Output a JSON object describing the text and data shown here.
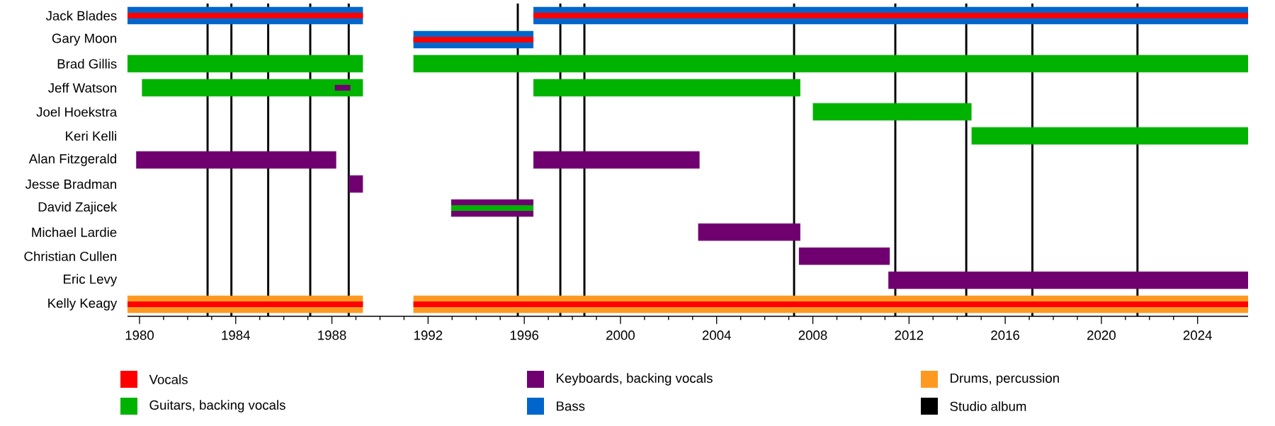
{
  "chart_data": {
    "type": "bar",
    "orientation": "horizontal",
    "legend": "bottom",
    "categories": [
      "Jack Blades",
      "Gary Moon",
      "Brad Gillis",
      "Jeff Watson",
      "Joel Hoekstra",
      "Keri Kelli",
      "Alan Fitzgerald",
      "Jesse Bradman",
      "David Zajicek",
      "Michael Lardie",
      "Christian Cullen",
      "Eric Levy",
      "Kelly Keagy"
    ],
    "xlim": [
      1979.5,
      2026.1
    ],
    "xticks": [
      1980,
      1984,
      1988,
      1992,
      1996,
      2000,
      2004,
      2008,
      2012,
      2016,
      2020,
      2024
    ],
    "series": [
      {
        "name": "Vocals",
        "color": "#ff0000",
        "base": [
          1979.5,
          1991.39,
          null,
          null,
          null,
          null,
          null,
          null,
          null,
          null,
          null,
          null,
          1979.5
        ],
        "values": [
          9.79,
          4.99,
          null,
          null,
          null,
          null,
          null,
          null,
          null,
          null,
          null,
          null,
          9.79
        ]
      },
      {
        "color": "#ff0000",
        "base": [
          1996.38,
          null,
          null,
          null,
          null,
          null,
          null,
          null,
          null,
          null,
          null,
          null,
          1991.39
        ],
        "values": [
          29.72,
          null,
          null,
          null,
          null,
          null,
          null,
          null,
          null,
          null,
          null,
          null,
          34.71
        ]
      },
      {
        "name": "Guitars, backing vocals",
        "color": "#00b300",
        "base": [
          null,
          null,
          1979.5,
          1980.1,
          2008.0,
          2014.6,
          null,
          null,
          1992.96,
          null,
          null,
          null,
          null
        ],
        "values": [
          null,
          null,
          9.79,
          9.19,
          6.6,
          11.5,
          null,
          null,
          3.42,
          null,
          null,
          null,
          null
        ]
      },
      {
        "color": "#00b300",
        "base": [
          null,
          null,
          1991.39,
          1996.38,
          null,
          null,
          null,
          null,
          null,
          null,
          null,
          null,
          null
        ],
        "values": [
          null,
          null,
          34.71,
          11.1,
          null,
          null,
          null,
          null,
          null,
          null,
          null,
          null,
          null
        ]
      },
      {
        "name": "Keyboards, backing vocals",
        "color": "#700070",
        "base": [
          null,
          null,
          null,
          1988.12,
          null,
          null,
          1979.86,
          1988.7,
          1992.96,
          2003.23,
          2007.42,
          2011.14,
          null
        ],
        "values": [
          null,
          null,
          null,
          0.65,
          null,
          null,
          8.32,
          0.59,
          3.42,
          4.25,
          3.78,
          14.96,
          null
        ]
      },
      {
        "color": "#700070",
        "base": [
          null,
          null,
          null,
          null,
          null,
          null,
          1996.38,
          null,
          null,
          null,
          null,
          null,
          null
        ],
        "values": [
          null,
          null,
          null,
          null,
          null,
          null,
          6.91,
          null,
          null,
          null,
          null,
          null,
          null
        ]
      },
      {
        "name": "Bass",
        "color": "#0066cc",
        "base": [
          1979.5,
          1991.39,
          null,
          null,
          null,
          null,
          null,
          null,
          null,
          null,
          null,
          null,
          null
        ],
        "values": [
          9.79,
          4.99,
          null,
          null,
          null,
          null,
          null,
          null,
          null,
          null,
          null,
          null,
          null
        ]
      },
      {
        "color": "#0066cc",
        "base": [
          1996.38,
          null,
          null,
          null,
          null,
          null,
          null,
          null,
          null,
          null,
          null,
          null,
          null
        ],
        "values": [
          29.72,
          null,
          null,
          null,
          null,
          null,
          null,
          null,
          null,
          null,
          null,
          null,
          null
        ]
      },
      {
        "name": "Drums, percussion",
        "color": "#ff9922",
        "base": [
          null,
          null,
          null,
          null,
          null,
          null,
          null,
          null,
          null,
          null,
          null,
          null,
          1979.5
        ],
        "values": [
          null,
          null,
          null,
          null,
          null,
          null,
          null,
          null,
          null,
          null,
          null,
          null,
          9.79
        ]
      },
      {
        "color": "#ff9922",
        "base": [
          null,
          null,
          null,
          null,
          null,
          null,
          null,
          null,
          null,
          null,
          null,
          null,
          1991.39
        ],
        "values": [
          null,
          null,
          null,
          null,
          null,
          null,
          null,
          null,
          null,
          null,
          null,
          null,
          34.71
        ]
      }
    ],
    "ref_lines": [
      {
        "axis": "x",
        "value": 1982.83,
        "color": "#000000",
        "label": "Studio album"
      },
      {
        "axis": "x",
        "value": 1983.82,
        "color": "#000000"
      },
      {
        "axis": "x",
        "value": 1985.35,
        "color": "#000000"
      },
      {
        "axis": "x",
        "value": 1987.1,
        "color": "#000000"
      },
      {
        "axis": "x",
        "value": 1988.7,
        "color": "#000000"
      },
      {
        "axis": "x",
        "value": 1995.73,
        "color": "#000000"
      },
      {
        "axis": "x",
        "value": 1997.5,
        "color": "#000000"
      },
      {
        "axis": "x",
        "value": 1998.5,
        "color": "#000000"
      },
      {
        "axis": "x",
        "value": 2007.22,
        "color": "#000000"
      },
      {
        "axis": "x",
        "value": 2011.43,
        "color": "#000000"
      },
      {
        "axis": "x",
        "value": 2014.38,
        "color": "#000000"
      },
      {
        "axis": "x",
        "value": 2017.13,
        "color": "#000000"
      },
      {
        "axis": "x",
        "value": 2021.5,
        "color": "#000000"
      }
    ]
  }
}
